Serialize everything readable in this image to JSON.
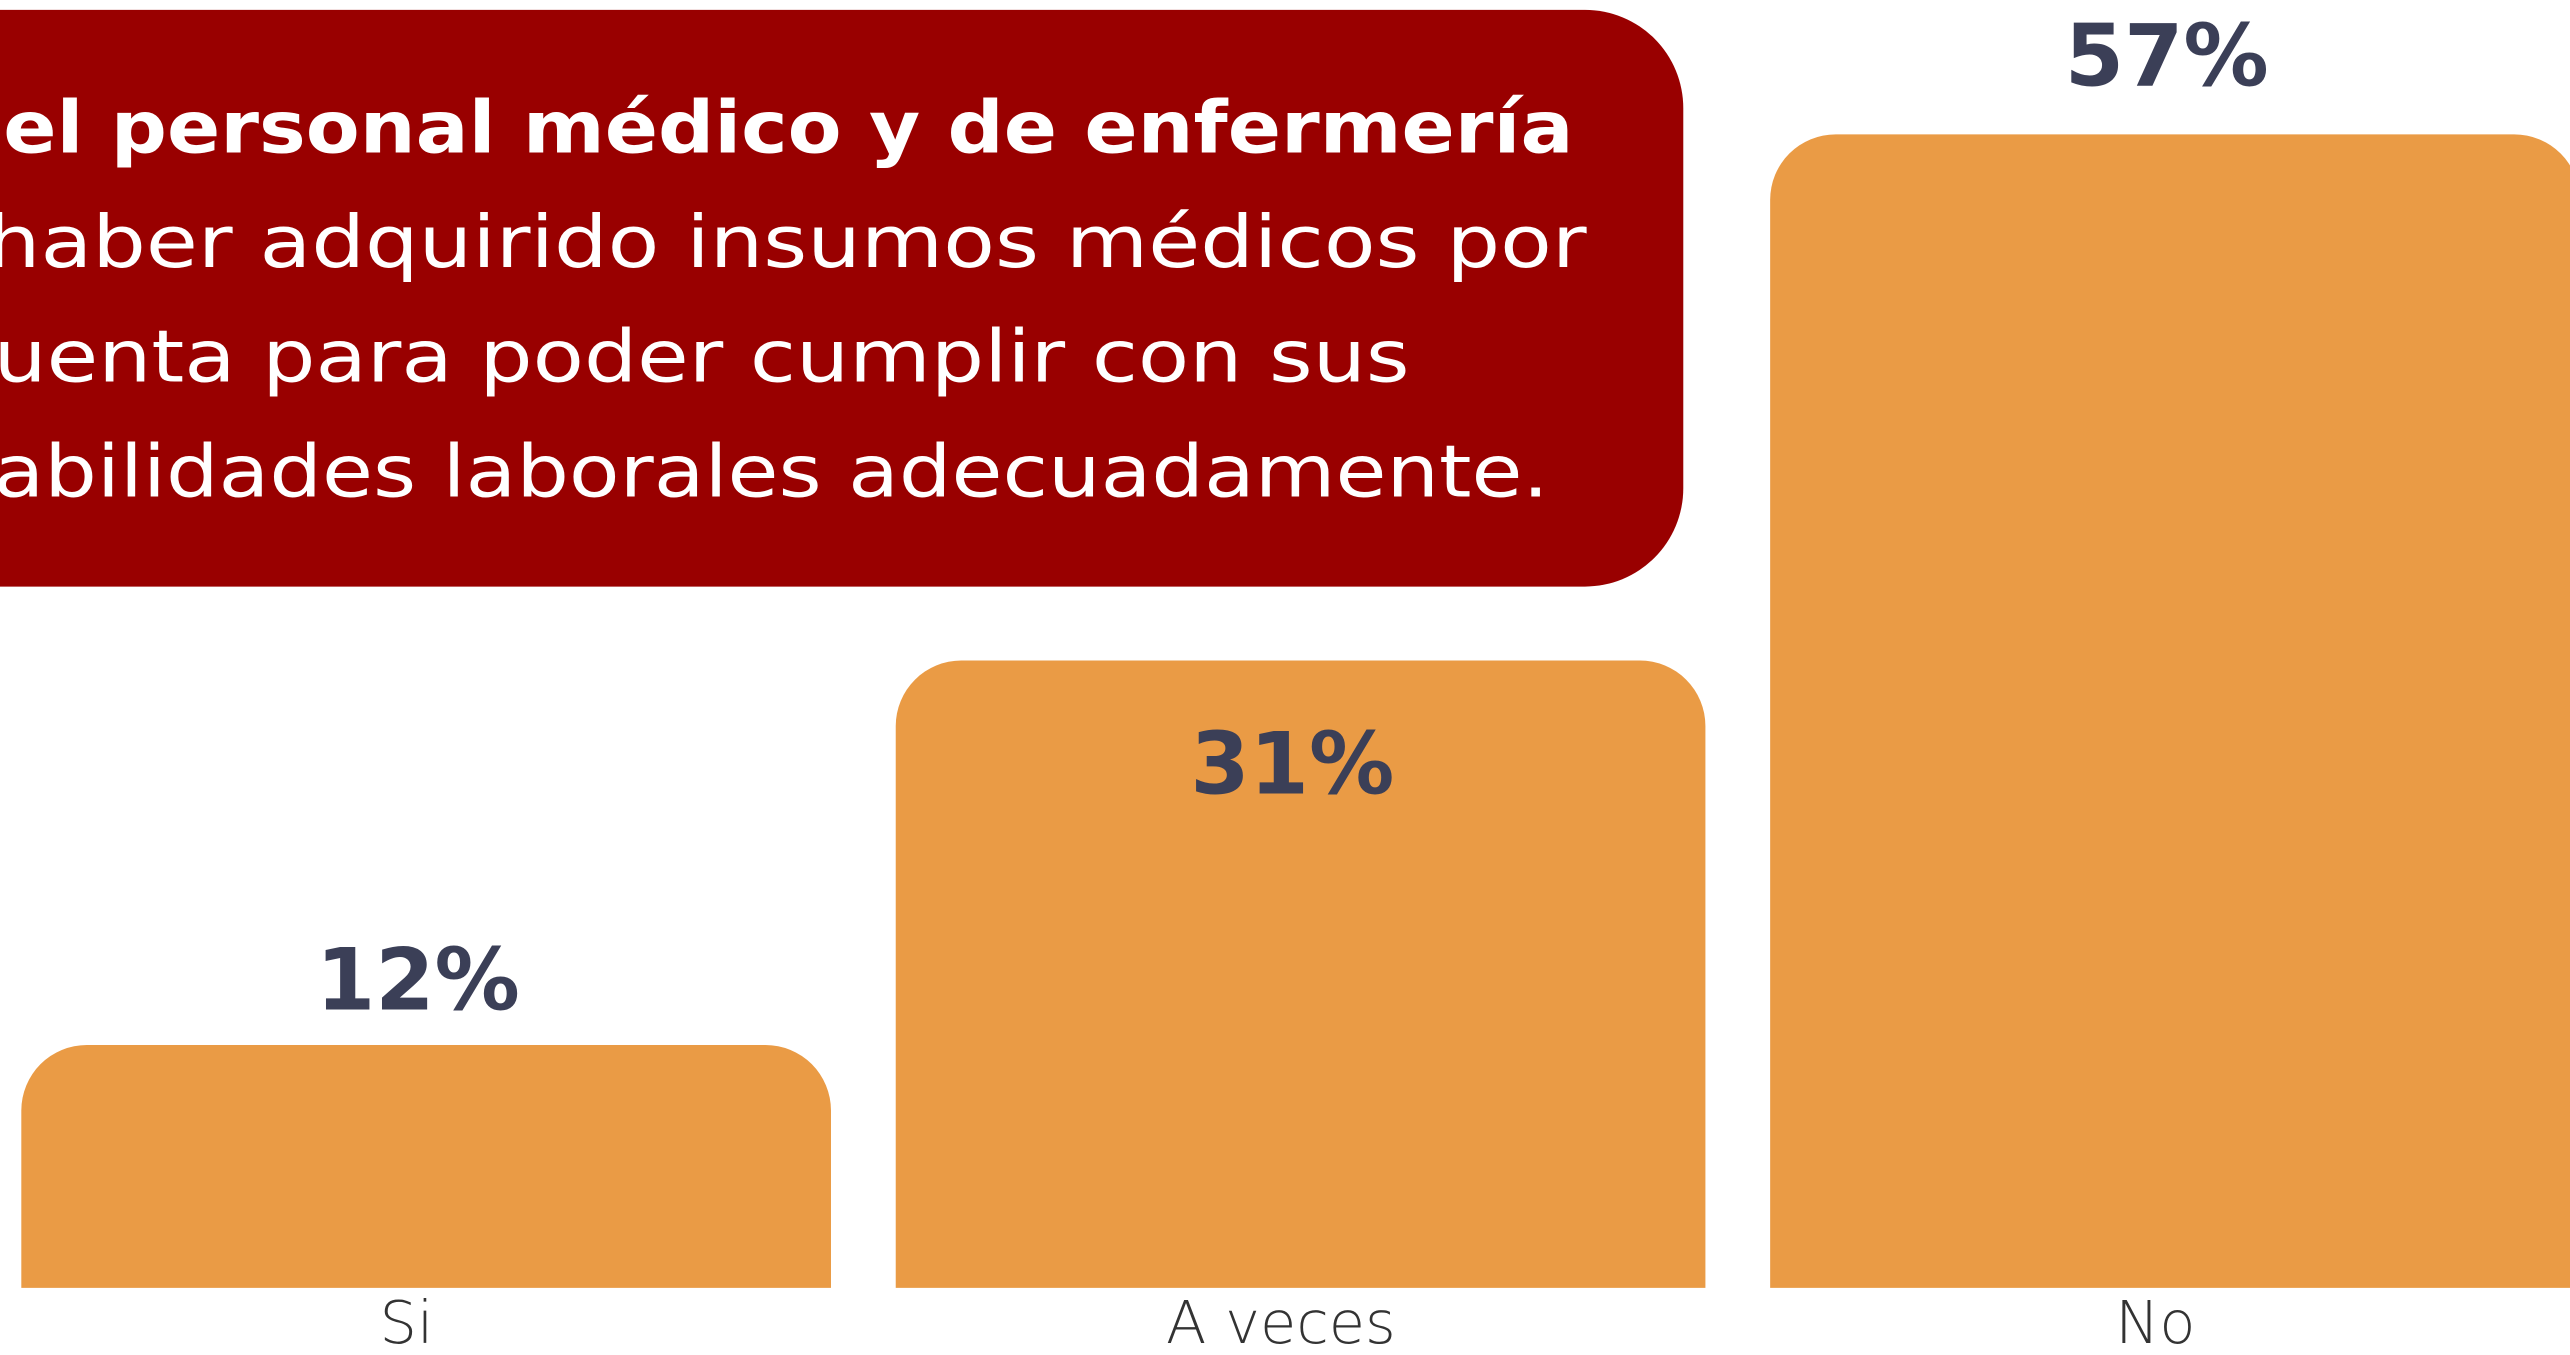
{
  "chart_data": {
    "type": "bar",
    "title": [
      "el personal médico y de enfermería",
      "haber adquirido insumos médicos por",
      "uenta para poder cumplir con sus",
      "abilidades laborales adecuadamente."
    ],
    "categories": [
      "Si",
      "A veces",
      "No"
    ],
    "values": [
      12,
      31,
      57
    ],
    "value_labels": [
      "12%",
      "31%",
      "57%"
    ],
    "color": "#ea9b45"
  }
}
